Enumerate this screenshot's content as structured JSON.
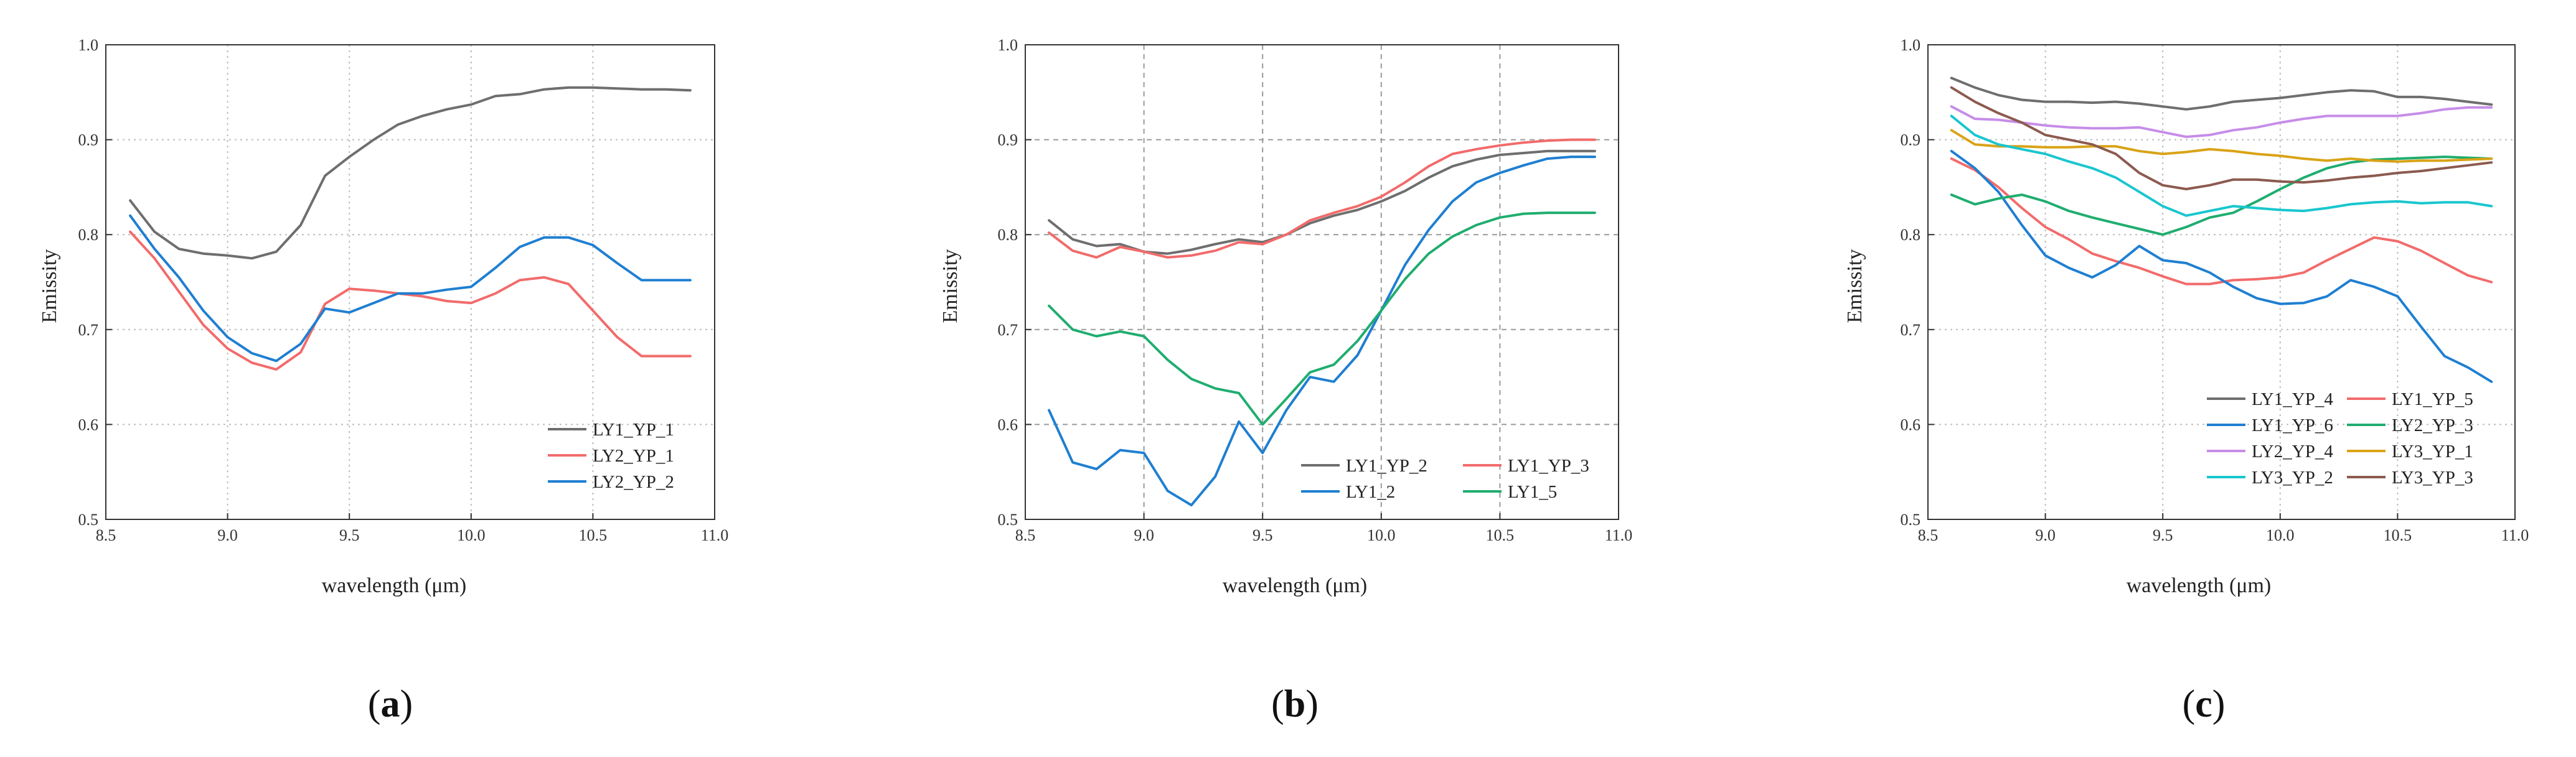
{
  "colors": {
    "gray": "#6e6e6e",
    "red": "#f26b6b",
    "blue": "#1f7fd1",
    "green": "#1fad6f",
    "violet": "#c68de8",
    "gold": "#d9a317",
    "cyan": "#19c6cf",
    "brown": "#8c5a4f"
  },
  "chart_data": [
    {
      "type": "line",
      "panel_label": "a",
      "xlabel": "wavelength (μm)",
      "ylabel": "Emissity",
      "xlim": [
        8.5,
        11.0
      ],
      "ylim": [
        0.5,
        1.0
      ],
      "xticks": [
        8.5,
        9.0,
        9.5,
        10.0,
        10.5,
        11.0
      ],
      "xtick_labels": [
        "8.5",
        "9.0",
        "9.5",
        "10.0",
        "10.5",
        "11.0"
      ],
      "yticks": [
        0.5,
        0.6,
        0.7,
        0.8,
        0.9,
        1.0
      ],
      "ytick_labels": [
        "0.5",
        "0.6",
        "0.7",
        "0.8",
        "0.9",
        "1.0"
      ],
      "grid": true,
      "legend_position": "bottom-right",
      "legend_columns": 1,
      "x": [
        8.6,
        8.7,
        8.8,
        8.9,
        9.0,
        9.1,
        9.2,
        9.3,
        9.4,
        9.5,
        9.6,
        9.7,
        9.8,
        9.9,
        10.0,
        10.1,
        10.2,
        10.3,
        10.4,
        10.5,
        10.6,
        10.7,
        10.8,
        10.9
      ],
      "series": [
        {
          "name": "LY1_YP_1",
          "color": "#6e6e6e",
          "values": [
            0.836,
            0.803,
            0.785,
            0.78,
            0.778,
            0.775,
            0.782,
            0.81,
            0.862,
            0.882,
            0.9,
            0.916,
            0.925,
            0.932,
            0.937,
            0.946,
            0.948,
            0.953,
            0.955,
            0.955,
            0.954,
            0.953,
            0.953,
            0.952
          ]
        },
        {
          "name": "LY2_YP_1",
          "color": "#f26b6b",
          "values": [
            0.803,
            0.775,
            0.74,
            0.705,
            0.68,
            0.665,
            0.658,
            0.676,
            0.727,
            0.743,
            0.741,
            0.738,
            0.735,
            0.73,
            0.728,
            0.738,
            0.752,
            0.755,
            0.748,
            0.72,
            0.692,
            0.672,
            0.672,
            0.672
          ]
        },
        {
          "name": "LY2_YP_2",
          "color": "#1f7fd1",
          "values": [
            0.82,
            0.785,
            0.755,
            0.72,
            0.692,
            0.675,
            0.667,
            0.685,
            0.722,
            0.718,
            0.728,
            0.738,
            0.738,
            0.742,
            0.745,
            0.765,
            0.787,
            0.797,
            0.797,
            0.789,
            0.77,
            0.752,
            0.752,
            0.752
          ]
        }
      ]
    },
    {
      "type": "line",
      "panel_label": "b",
      "xlabel": "wavelength (μm)",
      "ylabel": "Emissity",
      "xlim": [
        8.5,
        11.0
      ],
      "ylim": [
        0.5,
        1.0
      ],
      "xticks": [
        8.5,
        9.0,
        9.5,
        10.0,
        10.5,
        11.0
      ],
      "xtick_labels": [
        "8.5",
        "9.0",
        "9.5",
        "10.0",
        "10.5",
        "11.0"
      ],
      "yticks": [
        0.5,
        0.6,
        0.7,
        0.8,
        0.9,
        1.0
      ],
      "ytick_labels": [
        "0.5",
        "0.6",
        "0.7",
        "0.8",
        "0.9",
        "1.0"
      ],
      "grid": true,
      "legend_position": "bottom-right",
      "legend_columns": 2,
      "x": [
        8.6,
        8.7,
        8.8,
        8.9,
        9.0,
        9.1,
        9.2,
        9.3,
        9.4,
        9.5,
        9.6,
        9.7,
        9.8,
        9.9,
        10.0,
        10.1,
        10.2,
        10.3,
        10.4,
        10.5,
        10.6,
        10.7,
        10.8,
        10.9
      ],
      "series": [
        {
          "name": "LY1_YP_2",
          "color": "#6e6e6e",
          "values": [
            0.815,
            0.795,
            0.788,
            0.79,
            0.782,
            0.78,
            0.784,
            0.79,
            0.795,
            0.792,
            0.8,
            0.812,
            0.82,
            0.826,
            0.835,
            0.846,
            0.86,
            0.872,
            0.879,
            0.884,
            0.886,
            0.888,
            0.888,
            0.888
          ]
        },
        {
          "name": "LY1_YP_3",
          "color": "#f26b6b",
          "values": [
            0.802,
            0.783,
            0.776,
            0.787,
            0.782,
            0.776,
            0.778,
            0.783,
            0.792,
            0.79,
            0.8,
            0.815,
            0.823,
            0.83,
            0.84,
            0.855,
            0.872,
            0.885,
            0.89,
            0.894,
            0.897,
            0.899,
            0.9,
            0.9
          ]
        },
        {
          "name": "LY1_2",
          "color": "#1f7fd1",
          "values": [
            0.615,
            0.56,
            0.553,
            0.573,
            0.57,
            0.53,
            0.515,
            0.545,
            0.603,
            0.57,
            0.615,
            0.65,
            0.645,
            0.673,
            0.72,
            0.768,
            0.805,
            0.835,
            0.855,
            0.865,
            0.873,
            0.88,
            0.882,
            0.882
          ]
        },
        {
          "name": "LY1_5",
          "color": "#1fad6f",
          "values": [
            0.725,
            0.7,
            0.693,
            0.698,
            0.693,
            0.668,
            0.648,
            0.638,
            0.633,
            0.6,
            0.627,
            0.655,
            0.663,
            0.688,
            0.72,
            0.753,
            0.78,
            0.798,
            0.81,
            0.818,
            0.822,
            0.823,
            0.823,
            0.823
          ]
        }
      ]
    },
    {
      "type": "line",
      "panel_label": "c",
      "xlabel": "wavelength (μm)",
      "ylabel": "Emissity",
      "xlim": [
        8.5,
        11.0
      ],
      "ylim": [
        0.5,
        1.0
      ],
      "xticks": [
        8.5,
        9.0,
        9.5,
        10.0,
        10.5,
        11.0
      ],
      "xtick_labels": [
        "8.5",
        "9.0",
        "9.5",
        "10.0",
        "10.5",
        "11.0"
      ],
      "yticks": [
        0.5,
        0.6,
        0.7,
        0.8,
        0.9,
        1.0
      ],
      "ytick_labels": [
        "0.5",
        "0.6",
        "0.7",
        "0.8",
        "0.9",
        "1.0"
      ],
      "grid": true,
      "legend_position": "bottom-right",
      "legend_columns": 2,
      "x": [
        8.6,
        8.7,
        8.8,
        8.9,
        9.0,
        9.1,
        9.2,
        9.3,
        9.4,
        9.5,
        9.6,
        9.7,
        9.8,
        9.9,
        10.0,
        10.1,
        10.2,
        10.3,
        10.4,
        10.5,
        10.6,
        10.7,
        10.8,
        10.9
      ],
      "series": [
        {
          "name": "LY1_YP_4",
          "color": "#6e6e6e",
          "values": [
            0.965,
            0.955,
            0.947,
            0.942,
            0.94,
            0.94,
            0.939,
            0.94,
            0.938,
            0.935,
            0.932,
            0.935,
            0.94,
            0.942,
            0.944,
            0.947,
            0.95,
            0.952,
            0.951,
            0.945,
            0.945,
            0.943,
            0.94,
            0.937
          ]
        },
        {
          "name": "LY1_YP_5",
          "color": "#f26b6b",
          "values": [
            0.88,
            0.868,
            0.85,
            0.828,
            0.808,
            0.795,
            0.78,
            0.772,
            0.765,
            0.756,
            0.748,
            0.748,
            0.752,
            0.753,
            0.755,
            0.76,
            0.773,
            0.785,
            0.797,
            0.793,
            0.783,
            0.77,
            0.757,
            0.75
          ]
        },
        {
          "name": "LY1_YP_6",
          "color": "#1f7fd1",
          "values": [
            0.888,
            0.87,
            0.845,
            0.81,
            0.778,
            0.765,
            0.755,
            0.768,
            0.788,
            0.773,
            0.77,
            0.76,
            0.745,
            0.733,
            0.727,
            0.728,
            0.735,
            0.752,
            0.745,
            0.735,
            0.703,
            0.672,
            0.66,
            0.645
          ]
        },
        {
          "name": "LY2_YP_3",
          "color": "#1fad6f",
          "values": [
            0.842,
            0.832,
            0.838,
            0.842,
            0.835,
            0.825,
            0.818,
            0.812,
            0.806,
            0.8,
            0.808,
            0.818,
            0.823,
            0.835,
            0.848,
            0.86,
            0.87,
            0.876,
            0.879,
            0.88,
            0.881,
            0.882,
            0.881,
            0.88
          ]
        },
        {
          "name": "LY2_YP_4",
          "color": "#c68de8",
          "values": [
            0.935,
            0.922,
            0.921,
            0.918,
            0.915,
            0.913,
            0.912,
            0.912,
            0.913,
            0.908,
            0.903,
            0.905,
            0.91,
            0.913,
            0.918,
            0.922,
            0.925,
            0.925,
            0.925,
            0.925,
            0.928,
            0.932,
            0.934,
            0.934
          ]
        },
        {
          "name": "LY3_YP_1",
          "color": "#d9a317",
          "values": [
            0.91,
            0.895,
            0.893,
            0.893,
            0.892,
            0.892,
            0.893,
            0.893,
            0.888,
            0.885,
            0.887,
            0.89,
            0.888,
            0.885,
            0.883,
            0.88,
            0.878,
            0.88,
            0.878,
            0.877,
            0.878,
            0.878,
            0.879,
            0.88
          ]
        },
        {
          "name": "LY3_YP_2",
          "color": "#19c6cf",
          "values": [
            0.925,
            0.905,
            0.895,
            0.89,
            0.885,
            0.877,
            0.87,
            0.86,
            0.845,
            0.83,
            0.82,
            0.825,
            0.83,
            0.828,
            0.826,
            0.825,
            0.828,
            0.832,
            0.834,
            0.835,
            0.833,
            0.834,
            0.834,
            0.83
          ]
        },
        {
          "name": "LY3_YP_3",
          "color": "#8c5a4f",
          "values": [
            0.955,
            0.94,
            0.928,
            0.918,
            0.905,
            0.9,
            0.895,
            0.885,
            0.865,
            0.852,
            0.848,
            0.852,
            0.858,
            0.858,
            0.856,
            0.855,
            0.857,
            0.86,
            0.862,
            0.865,
            0.867,
            0.87,
            0.873,
            0.876
          ]
        }
      ]
    }
  ]
}
